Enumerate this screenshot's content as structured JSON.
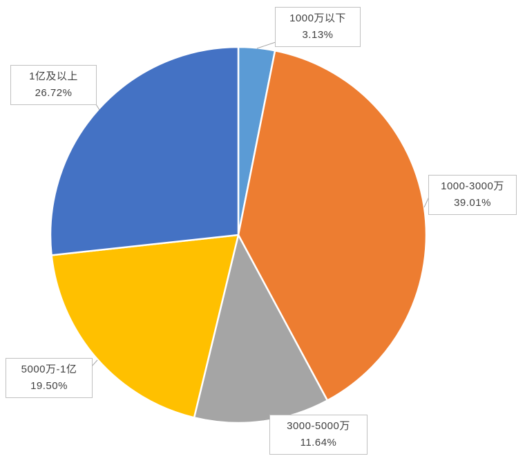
{
  "chart_data": {
    "type": "pie",
    "title": "",
    "legend_position": "none",
    "label_style": "callout-boxes",
    "start_angle_deg": 0,
    "direction": "clockwise",
    "slices": [
      {
        "label": "1000万以下",
        "value": 3.13,
        "percent_label": "3.13%",
        "color": "#5B9BD5"
      },
      {
        "label": "1000-3000万",
        "value": 39.01,
        "percent_label": "39.01%",
        "color": "#ED7D31"
      },
      {
        "label": "3000-5000万",
        "value": 11.64,
        "percent_label": "11.64%",
        "color": "#A5A5A5"
      },
      {
        "label": "5000万-1亿",
        "value": 19.5,
        "percent_label": "19.50%",
        "color": "#FFC000"
      },
      {
        "label": "1亿及以上",
        "value": 26.72,
        "percent_label": "26.72%",
        "color": "#4472C4"
      }
    ],
    "colors": {
      "slice_border": "#ffffff",
      "leader_line": "#a6a6a6",
      "callout_border": "#bfbfbf",
      "text": "#404040"
    }
  }
}
